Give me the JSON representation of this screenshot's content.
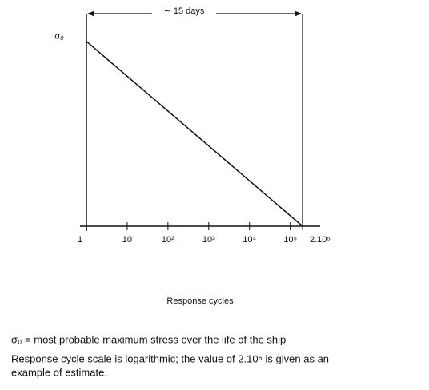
{
  "chart_data": {
    "type": "line",
    "x_scale": "log",
    "annotation": "∼ 15 days",
    "x_label": "Response cycles",
    "x": [
      1,
      200000
    ],
    "series": [
      {
        "color": "#111111",
        "values": [
          1,
          0
        ]
      }
    ],
    "xlim": [
      1,
      200000
    ],
    "xticks": [
      1,
      10,
      {
        "value": 100,
        "label": "10²"
      },
      {
        "value": 1000,
        "label": "10³"
      },
      {
        "value": 10000,
        "label": "10⁴"
      },
      {
        "value": 100000,
        "label": "10⁵"
      },
      {
        "value": 200000,
        "label": "2.10⁵"
      }
    ],
    "ylim": [
      0,
      1.15
    ],
    "yticks": [
      {
        "value": 1,
        "label": "σ₀"
      }
    ],
    "notes": [
      "σ₀  =  most probable maximum stress over the life of the ship",
      "Response cycle scale is logarithmic; the value of 2.10⁵ is given as an",
      "example of estimate."
    ]
  }
}
